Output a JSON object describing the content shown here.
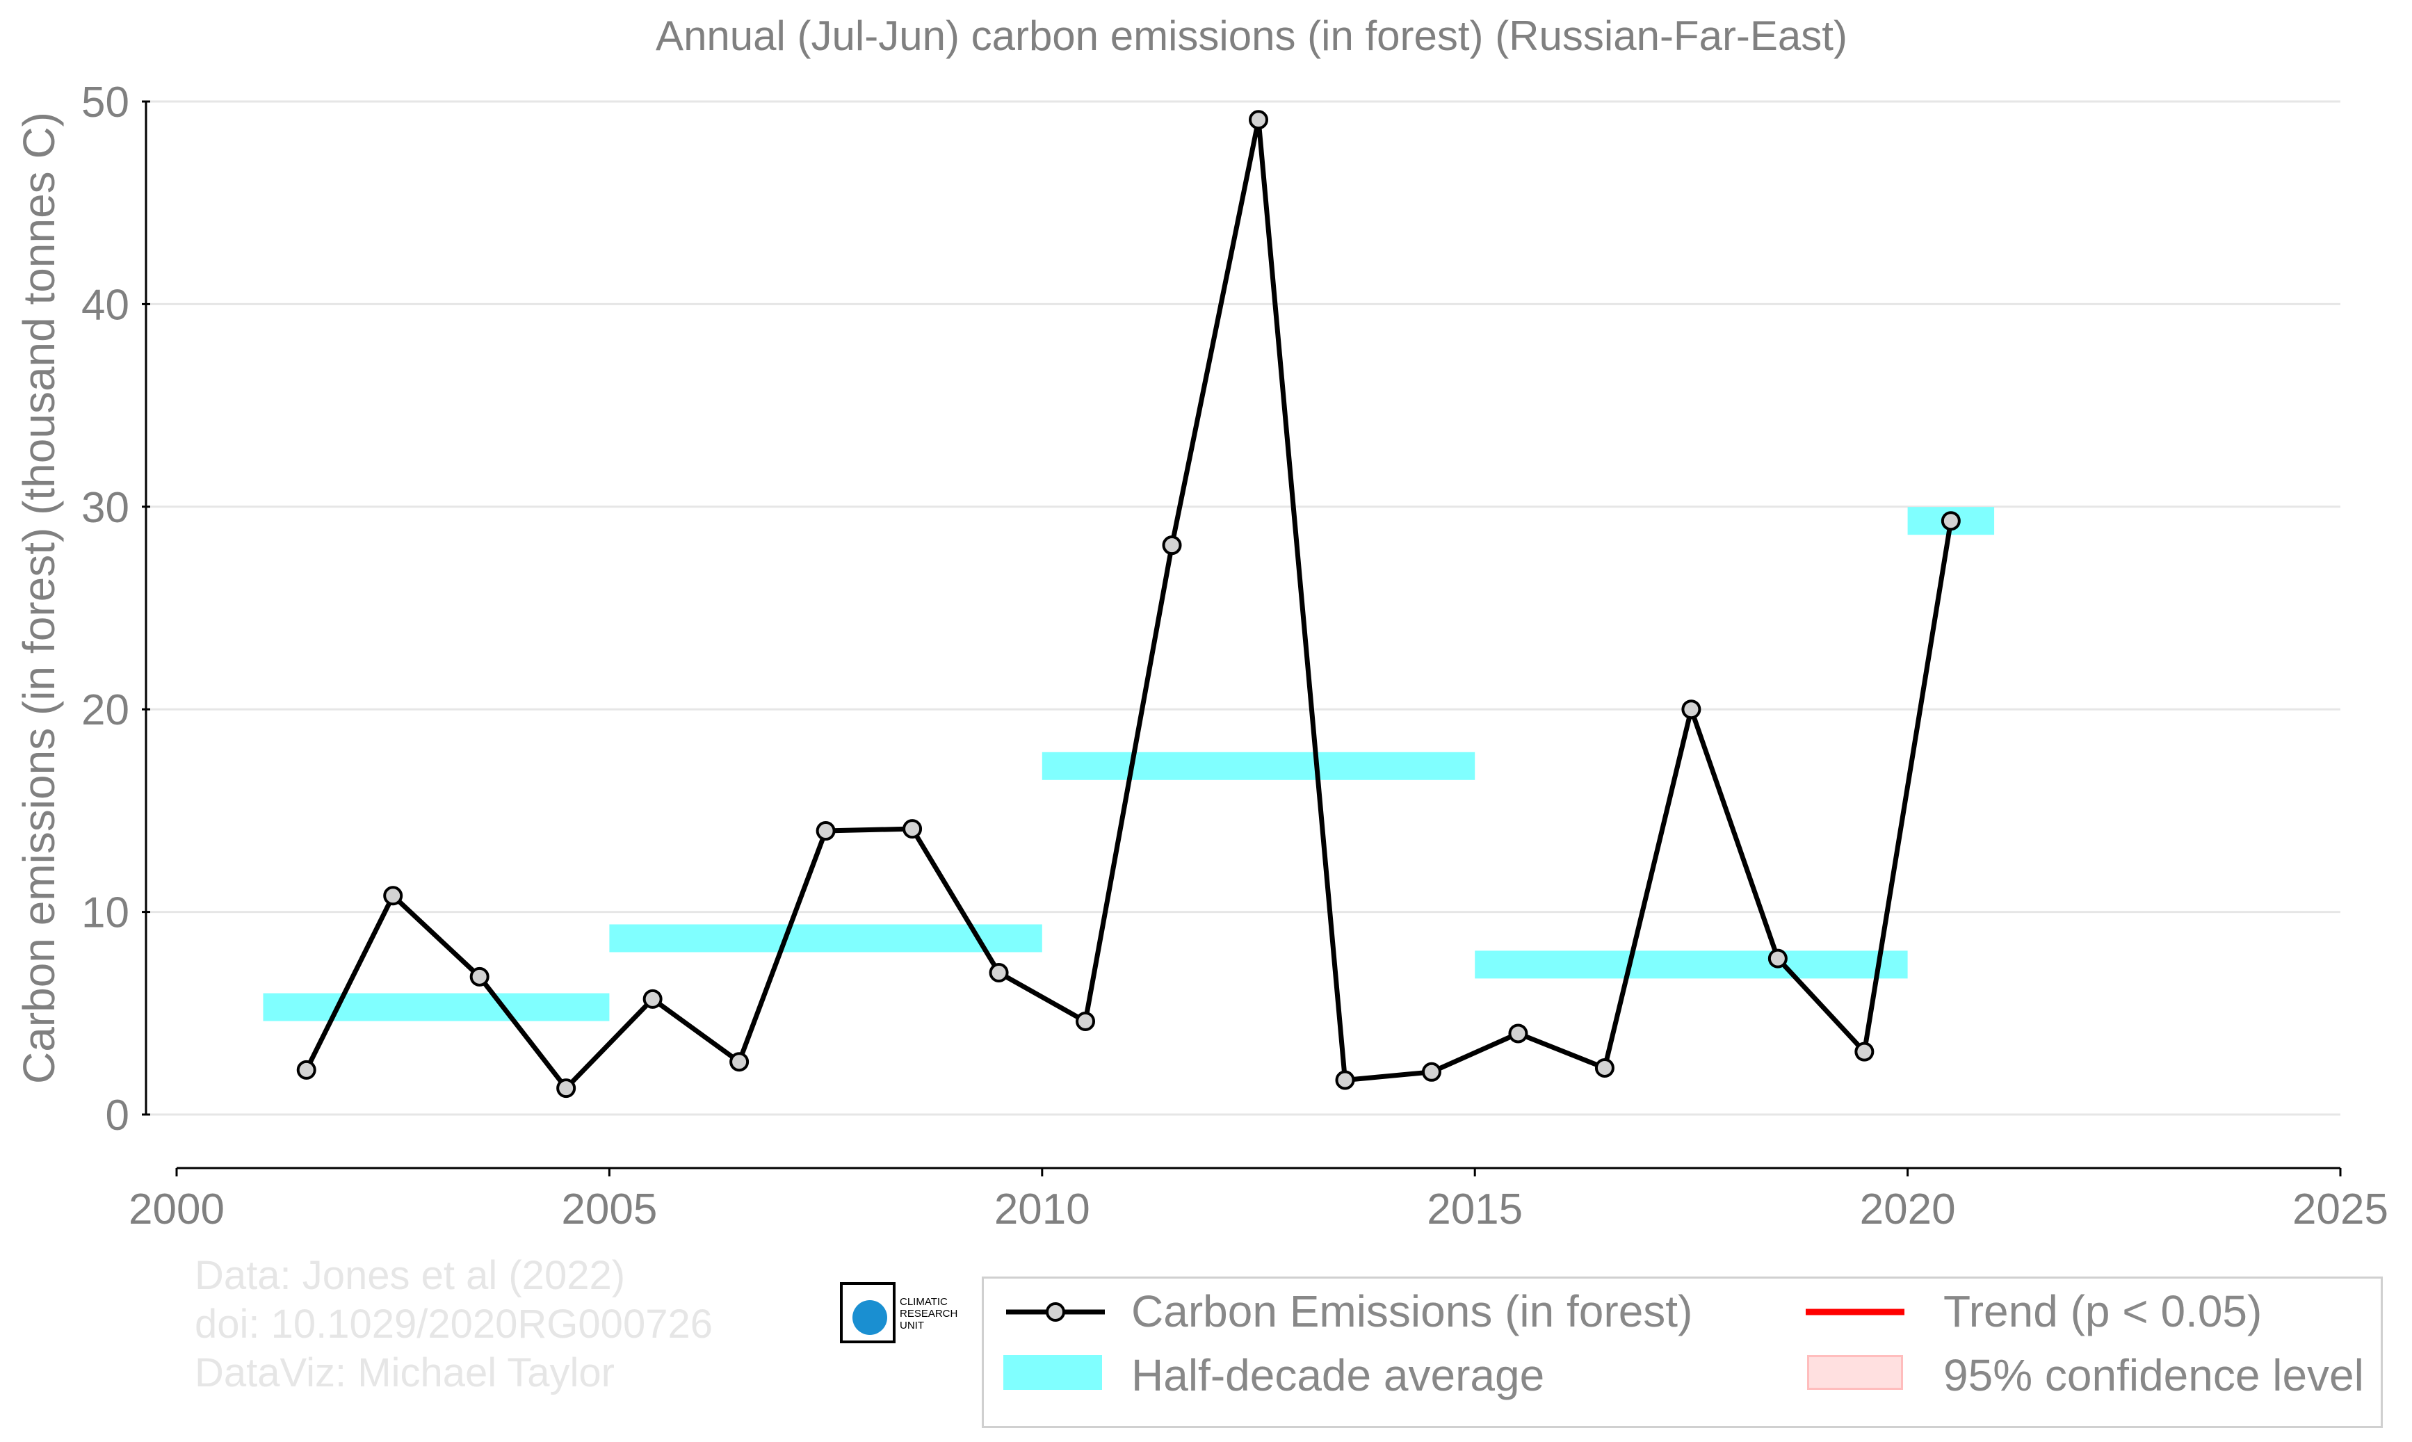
{
  "chart_data": {
    "type": "line",
    "title": "Annual (Jul-Jun) carbon emissions (in forest) (Russian-Far-East)",
    "ylabel": "Carbon emissions (in forest) (thousand tonnes C)",
    "xlabel": "",
    "xlim": [
      2000,
      2025
    ],
    "ylim": [
      0,
      50
    ],
    "x_ticks": [
      2000,
      2005,
      2010,
      2015,
      2020,
      2025
    ],
    "y_ticks": [
      0,
      10,
      20,
      30,
      40,
      50
    ],
    "grid": "horizontal",
    "series": [
      {
        "name": "Carbon Emissions (in forest)",
        "color": "#000000",
        "marker_fill": "#d3d3d3",
        "x": [
          2001.5,
          2002.5,
          2003.5,
          2004.5,
          2005.5,
          2006.5,
          2007.5,
          2008.5,
          2009.5,
          2010.5,
          2011.5,
          2012.5,
          2013.5,
          2014.5,
          2015.5,
          2016.5,
          2017.5,
          2018.5,
          2019.5,
          2020.5
        ],
        "y": [
          2.2,
          10.8,
          6.8,
          1.3,
          5.7,
          2.6,
          14.0,
          14.1,
          7.0,
          4.6,
          28.1,
          49.1,
          1.7,
          2.1,
          4.0,
          2.3,
          20.0,
          7.7,
          3.1,
          29.3
        ]
      }
    ],
    "half_decade_average": {
      "name": "Half-decade average",
      "color": "#80ffff",
      "segments": [
        {
          "x_start": 2001,
          "x_end": 2005,
          "y": 5.3
        },
        {
          "x_start": 2005,
          "x_end": 2010,
          "y": 8.7
        },
        {
          "x_start": 2010,
          "x_end": 2015,
          "y": 17.2
        },
        {
          "x_start": 2015,
          "x_end": 2020,
          "y": 7.4
        },
        {
          "x_start": 2020,
          "x_end": 2021,
          "y": 29.3
        }
      ]
    },
    "legend": {
      "placement": "bottom-right",
      "entries": [
        {
          "label": "Carbon Emissions (in forest)",
          "kind": "line-marker",
          "color": "#000000"
        },
        {
          "label": "Trend (p < 0.05)",
          "kind": "line",
          "color": "#ff0000"
        },
        {
          "label": "Half-decade average",
          "kind": "band",
          "color": "#80ffff"
        },
        {
          "label": "95% confidence level",
          "kind": "band",
          "color": "#ffe0e0"
        }
      ]
    }
  },
  "colors": {
    "axis_text": "#808080",
    "grid": "#e6e6e6",
    "credits_text": "#e6e6e6"
  },
  "credits": {
    "line1": "Data: Jones et al (2022)",
    "line2": "doi: 10.1029/2020RG000726",
    "line3": "DataViz: Michael Taylor"
  },
  "logo": {
    "line1": "CLIMATIC",
    "line2": "RESEARCH",
    "line3": "UNIT"
  }
}
